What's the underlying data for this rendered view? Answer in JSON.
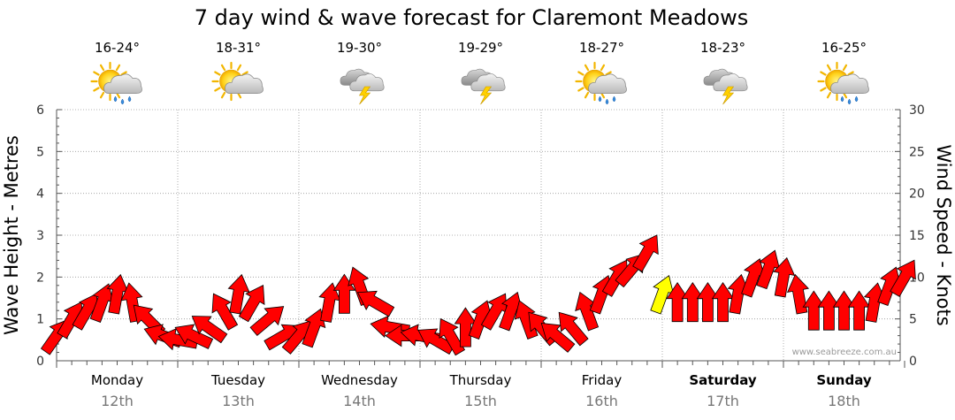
{
  "chart_data": {
    "type": "line",
    "title": "7 day wind & wave forecast for Claremont Meadows",
    "ylabel_left": "Wave Height - Metres",
    "ylabel_right": "Wind Speed - Knots",
    "ylim_left": [
      0,
      6
    ],
    "ylim_right": [
      0,
      30
    ],
    "yticks_left": [
      "0",
      "1",
      "2",
      "3",
      "4",
      "5",
      "6"
    ],
    "yticks_right": [
      "0",
      "5",
      "10",
      "15",
      "20",
      "25",
      "30"
    ],
    "grid": true,
    "days": [
      {
        "name": "Monday",
        "date": "12th",
        "temp": "16-24°",
        "icon": "sun-cloud-rain-icon",
        "bold": false
      },
      {
        "name": "Tuesday",
        "date": "13th",
        "temp": "18-31°",
        "icon": "sun-cloud-icon",
        "bold": false
      },
      {
        "name": "Wednesday",
        "date": "14th",
        "temp": "19-30°",
        "icon": "storm-cloud-icon",
        "bold": false
      },
      {
        "name": "Thursday",
        "date": "15th",
        "temp": "19-29°",
        "icon": "storm-cloud-icon",
        "bold": false
      },
      {
        "name": "Friday",
        "date": "16th",
        "temp": "18-27°",
        "icon": "sun-cloud-rain-icon",
        "bold": false
      },
      {
        "name": "Saturday",
        "date": "17th",
        "temp": "18-23°",
        "icon": "storm-cloud-icon",
        "bold": true
      },
      {
        "name": "Sunday",
        "date": "18th",
        "temp": "16-25°",
        "icon": "sun-cloud-rain-icon",
        "bold": true
      }
    ],
    "series": [
      {
        "unit": "knots",
        "color": "#ff0000",
        "highlight_color": "#ffff00",
        "hours": [
          0,
          3,
          6,
          9,
          12,
          15,
          18,
          21,
          24,
          27,
          30,
          33,
          36,
          39,
          42,
          45,
          48,
          51,
          54,
          57,
          60,
          63,
          66,
          69,
          72,
          75,
          78,
          81,
          84,
          87,
          90,
          93,
          96,
          99,
          102,
          105,
          108,
          111,
          114,
          117,
          120,
          123,
          126,
          129,
          132,
          135,
          138,
          141,
          144,
          147,
          150,
          153,
          156,
          159,
          162,
          165,
          168
        ],
        "wind_speed": [
          3,
          5,
          6,
          7,
          8,
          7,
          5,
          3,
          2.5,
          3,
          4,
          6,
          8,
          7,
          5,
          3,
          3,
          4,
          7,
          8,
          9,
          7,
          4,
          3,
          3,
          2.5,
          3,
          4,
          5,
          6,
          6,
          5,
          4,
          3,
          4,
          6,
          8,
          10,
          11,
          13,
          8,
          7,
          7,
          7,
          7,
          8,
          10,
          11,
          10,
          8,
          6,
          6,
          6,
          6,
          7,
          9,
          10
        ],
        "direction_deg": [
          215,
          210,
          210,
          200,
          190,
          170,
          135,
          110,
          100,
          115,
          125,
          150,
          190,
          210,
          230,
          240,
          220,
          200,
          190,
          180,
          160,
          120,
          100,
          90,
          100,
          120,
          150,
          180,
          200,
          210,
          200,
          160,
          140,
          130,
          140,
          160,
          200,
          210,
          220,
          210,
          200,
          180,
          180,
          180,
          180,
          190,
          200,
          200,
          190,
          170,
          180,
          180,
          180,
          180,
          190,
          200,
          210
        ],
        "highlight_index": 40
      }
    ]
  },
  "credit": "www.seabreeze.com.au"
}
